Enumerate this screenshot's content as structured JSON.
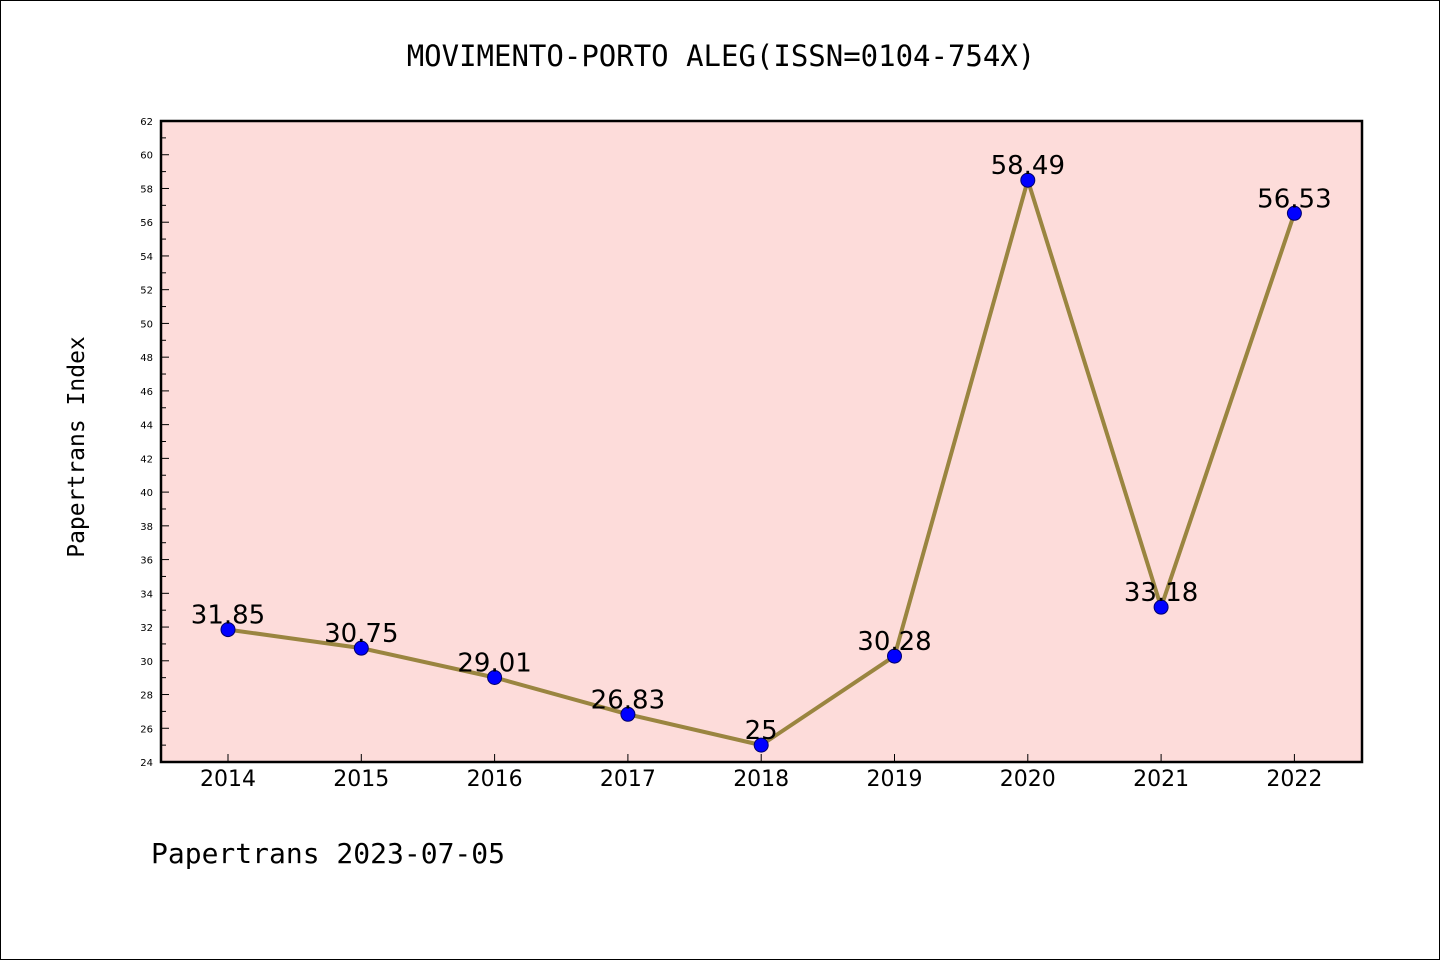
{
  "title": "MOVIMENTO-PORTO ALEG(ISSN=0104-754X)",
  "footer": "Papertrans 2023-07-05",
  "colors": {
    "plot_background": "#fddcda",
    "line": "#9a8540",
    "marker": "#0000ff"
  },
  "chart_data": {
    "type": "line",
    "title": "MOVIMENTO-PORTO ALEG(ISSN=0104-754X)",
    "xlabel": "",
    "ylabel": "Papertrans Index",
    "categories": [
      "2014",
      "2015",
      "2016",
      "2017",
      "2018",
      "2019",
      "2020",
      "2021",
      "2022"
    ],
    "series": [
      {
        "values": [
          31.85,
          30.75,
          29.01,
          26.83,
          25,
          30.28,
          58.49,
          33.18,
          56.53
        ],
        "labels": [
          "31.85",
          "30.75",
          "29.01",
          "26.83",
          "25",
          "30.28",
          "58.49",
          "33.18",
          "56.53"
        ]
      }
    ],
    "ylim": [
      24,
      62
    ],
    "ytick_step": 2,
    "yminor_step": 1,
    "grid": false,
    "legend": "none"
  }
}
